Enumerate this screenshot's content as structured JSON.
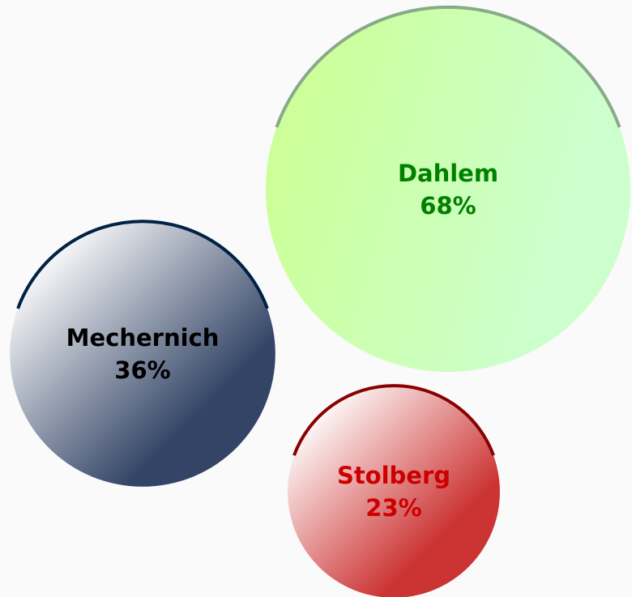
{
  "chart_data": {
    "type": "bubble",
    "categories": [
      "Dahlem",
      "Mechernich",
      "Stolberg"
    ],
    "values": [
      68,
      36,
      23
    ],
    "value_labels": [
      "68%",
      "36%",
      "23%"
    ],
    "colors": [
      "#ccff99",
      "#334466",
      "#cc3333"
    ],
    "label_colors": [
      "#008000",
      "#000000",
      "#cc0000"
    ],
    "rim_colors": [
      "#88aa88",
      "#002244",
      "#880000"
    ]
  }
}
